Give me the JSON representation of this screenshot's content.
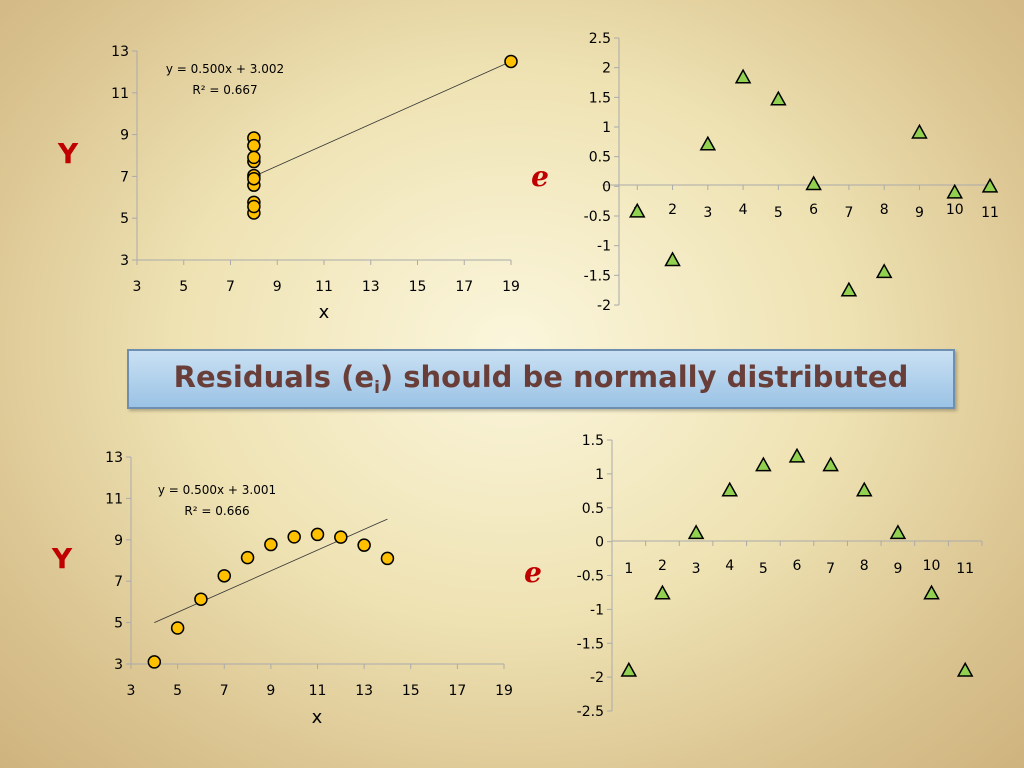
{
  "banner": {
    "text_before": "Residuals (e",
    "subscript": "i",
    "text_after": ") should be normally distributed"
  },
  "colors": {
    "marker_circle": "#ffc000",
    "marker_triangle": "#92d050",
    "label_red": "#c00000",
    "banner_text": "#6a3e38"
  },
  "chart_data": [
    {
      "type": "scatter",
      "title": "",
      "ylabel": "Y",
      "xlabel": "x",
      "xlim": [
        3,
        19
      ],
      "ylim": [
        3,
        13
      ],
      "xticks": [
        3,
        5,
        7,
        9,
        11,
        13,
        15,
        17,
        19
      ],
      "yticks": [
        3,
        5,
        7,
        9,
        11,
        13
      ],
      "marker": "circle",
      "x": [
        8,
        8,
        8,
        8,
        8,
        8,
        8,
        8,
        8,
        8,
        19
      ],
      "y": [
        6.58,
        5.76,
        7.71,
        8.84,
        8.47,
        7.04,
        5.25,
        5.56,
        7.91,
        6.89,
        12.5
      ],
      "trendline": {
        "x": [
          8,
          19
        ],
        "equation": "y = 0.500x + 3.002",
        "r2": "R² = 0.667"
      }
    },
    {
      "type": "scatter",
      "title": "",
      "ylabel": "e",
      "xlabel": "",
      "xlim": [
        0,
        11
      ],
      "ylim": [
        -2,
        2.5
      ],
      "xticks": [
        1,
        2,
        3,
        4,
        5,
        6,
        7,
        8,
        9,
        10,
        11
      ],
      "yticks": [
        2.5,
        2,
        1.5,
        1,
        0.5,
        0,
        -0.5,
        -1,
        -1.5,
        -2
      ],
      "marker": "triangle",
      "x": [
        1,
        2,
        3,
        4,
        5,
        6,
        7,
        8,
        9,
        10,
        11
      ],
      "y": [
        -0.42,
        -1.24,
        0.71,
        1.84,
        1.47,
        0.04,
        -1.75,
        -1.44,
        0.91,
        -0.1,
        0.0
      ]
    },
    {
      "type": "scatter",
      "title": "",
      "ylabel": "Y",
      "xlabel": "x",
      "xlim": [
        3,
        19
      ],
      "ylim": [
        3,
        13
      ],
      "xticks": [
        3,
        5,
        7,
        9,
        11,
        13,
        15,
        17,
        19
      ],
      "yticks": [
        3,
        5,
        7,
        9,
        11,
        13
      ],
      "marker": "circle",
      "x": [
        4,
        5,
        6,
        7,
        8,
        9,
        10,
        11,
        12,
        13,
        14
      ],
      "y": [
        3.1,
        4.74,
        6.13,
        7.26,
        8.14,
        8.77,
        9.14,
        9.26,
        9.13,
        8.74,
        8.1
      ],
      "trendline": {
        "x": [
          4,
          14
        ],
        "equation": "y = 0.500x + 3.001",
        "r2": "R² = 0.666"
      }
    },
    {
      "type": "scatter",
      "title": "",
      "ylabel": "e",
      "xlabel": "",
      "xlim": [
        0.5,
        11.5
      ],
      "ylim": [
        -2.5,
        1.5
      ],
      "xticks": [
        1,
        2,
        3,
        4,
        5,
        6,
        7,
        8,
        9,
        10,
        11
      ],
      "yticks": [
        1.5,
        1,
        0.5,
        0,
        -0.5,
        -1,
        -1.5,
        -2,
        -2.5
      ],
      "marker": "triangle",
      "x": [
        1,
        2,
        3,
        4,
        5,
        6,
        7,
        8,
        9,
        10,
        11
      ],
      "y": [
        -1.9,
        -0.76,
        0.13,
        0.76,
        1.13,
        1.26,
        1.13,
        0.76,
        0.13,
        -0.76,
        -1.9
      ]
    }
  ]
}
